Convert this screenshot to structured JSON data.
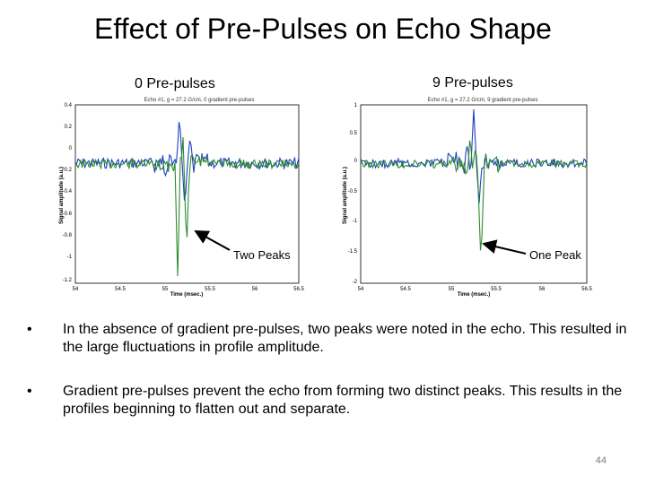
{
  "slide": {
    "title": "Effect of Pre-Pulses on Echo Shape",
    "page_number": "44"
  },
  "panels": [
    {
      "label": "0 Pre-pulses",
      "plot_title": "Echo #1, g = 27.2 G/cm, 0 gradient pre-pulses",
      "ylabel": "Signal amplitude (a.u.)",
      "xlabel": "Time (msec.)",
      "yticks": [
        "0.4",
        "0.2",
        "0",
        "-0.2",
        "-0.4",
        "-0.6",
        "-0.8",
        "-1",
        "-1.2"
      ],
      "xticks": [
        "54",
        "54.5",
        "55",
        "55.5",
        "56",
        "56.5"
      ],
      "annotation": "Two Peaks"
    },
    {
      "label": "9 Pre-pulses",
      "plot_title": "Echo #1, g = 27.2 G/cm, 9 gradient pre-pulses",
      "ylabel": "Signal amplitude (a.u.)",
      "xlabel": "Time (msec.)",
      "yticks": [
        "1",
        "0.5",
        "0",
        "-0.5",
        "-1",
        "-1.5",
        "-2"
      ],
      "xticks": [
        "54",
        "54.5",
        "55",
        "55.5",
        "56",
        "56.5"
      ],
      "annotation": "One Peak"
    }
  ],
  "bullets": [
    "In the absence of gradient pre-pulses, two peaks were noted in the echo. This resulted in the large fluctuations in profile amplitude.",
    "Gradient pre-pulses prevent the echo from forming two distinct peaks. This results in the profiles beginning to flatten out and separate."
  ],
  "bullet_symbol": "•",
  "colors": {
    "blue_trace": "#1f3fbf",
    "green_trace": "#2e8b2e",
    "axis": "#000000"
  }
}
